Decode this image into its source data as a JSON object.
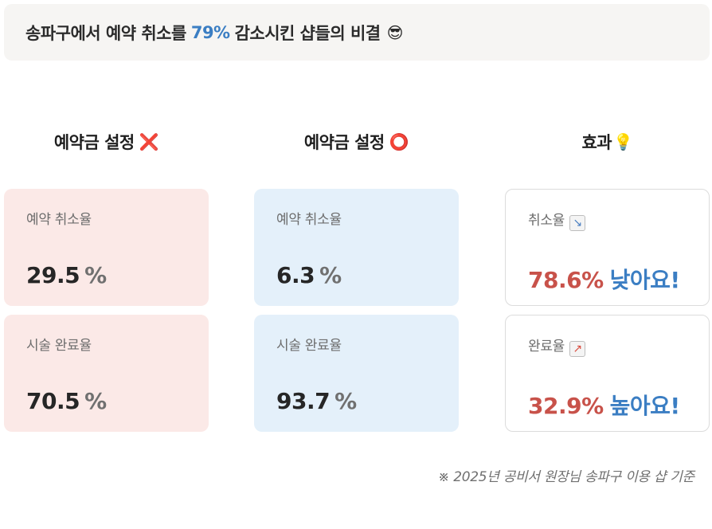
{
  "banner": {
    "text_before": "송파구에서 예약 취소를",
    "highlight": "79%",
    "text_after": "감소시킨 샵들의 비결",
    "emoji": "😎"
  },
  "columns": [
    {
      "title": "예약금 설정",
      "mark": "❌",
      "cards": [
        {
          "label": "예약 취소율",
          "value": "29.5",
          "unit": "%"
        },
        {
          "label": "시술 완료율",
          "value": "70.5",
          "unit": "%"
        }
      ]
    },
    {
      "title": "예약금 설정",
      "mark": "⭕",
      "cards": [
        {
          "label": "예약 취소율",
          "value": "6.3",
          "unit": "%"
        },
        {
          "label": "시술 완료율",
          "value": "93.7",
          "unit": "%"
        }
      ]
    },
    {
      "title": "효과",
      "mark": "💡",
      "cards": [
        {
          "label": "취소율",
          "icon": "chart-decreasing-icon",
          "icon_glyph": "↘",
          "value": "78.6%",
          "suffix": "낮아요!"
        },
        {
          "label": "완료율",
          "icon": "chart-increasing-icon",
          "icon_glyph": "↗",
          "value": "32.9%",
          "suffix": "높아요!"
        }
      ]
    }
  ],
  "footnote": "※ 2025년 공비서 원장님 송파구 이용 샵 기준",
  "colors": {
    "accent_blue": "#3b7ec3",
    "accent_red": "#c8524a",
    "pink_card": "#fbe9e7",
    "blue_card": "#e4f0fa"
  }
}
